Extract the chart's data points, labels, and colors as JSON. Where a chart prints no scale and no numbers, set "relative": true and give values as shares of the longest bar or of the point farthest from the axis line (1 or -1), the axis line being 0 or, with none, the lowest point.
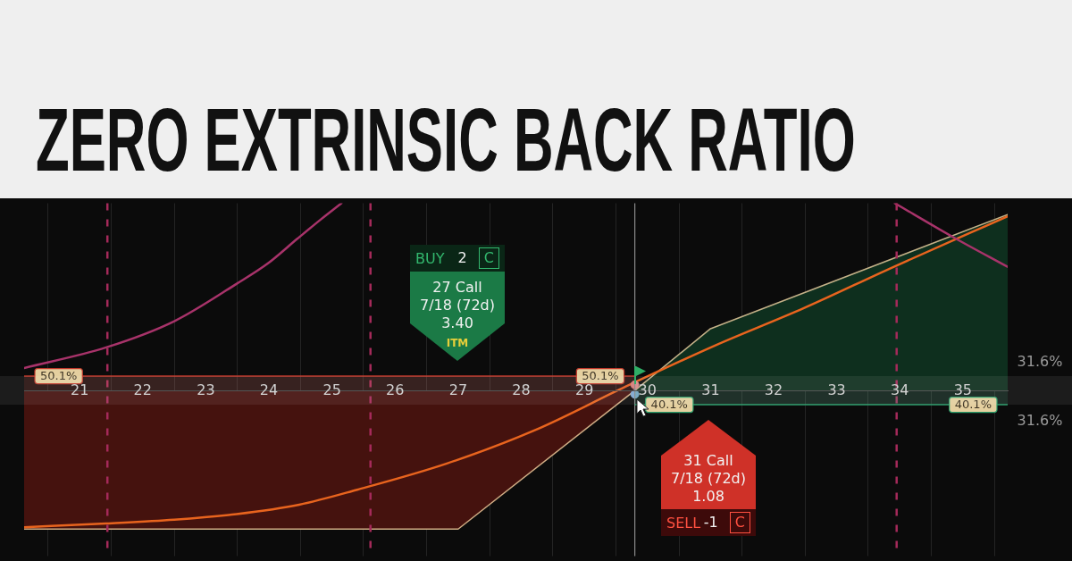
{
  "chart_data": {
    "type": "line",
    "title": "ZERO EXTRINSIC BACK RATIO",
    "relative": true,
    "xlim": [
      20.12,
      35.71
    ],
    "xticks": [
      {
        "value": 20.5,
        "label": null
      },
      21,
      {
        "value": 21.5,
        "label": null
      },
      22,
      {
        "value": 22.5,
        "label": null
      },
      23,
      {
        "value": 23.5,
        "label": null
      },
      24,
      {
        "value": 24.5,
        "label": null
      },
      25,
      {
        "value": 25.5,
        "label": null
      },
      26,
      {
        "value": 26.5,
        "label": null
      },
      27,
      {
        "value": 27.5,
        "label": null
      },
      28,
      {
        "value": 28.5,
        "label": null
      },
      29,
      {
        "value": 29.5,
        "label": null
      },
      30,
      {
        "value": 30.5,
        "label": null
      },
      31,
      {
        "value": 31.5,
        "label": null
      },
      32,
      {
        "value": 32.5,
        "label": null
      },
      33,
      {
        "value": 33.5,
        "label": null
      },
      34,
      {
        "value": 34.5,
        "label": null
      },
      35,
      {
        "value": 35.5,
        "label": null
      }
    ],
    "grid": "x",
    "series": [
      {
        "type": "area",
        "color": "#45120e",
        "x": [
          20.12,
          27,
          29.8
        ],
        "values": [
          -0.74,
          -0.74,
          0
        ]
      },
      {
        "type": "area",
        "color": "#0e2f1e",
        "x": [
          29.8,
          31,
          35.71
        ],
        "values": [
          0,
          0.33,
          0.94
        ]
      },
      {
        "color": "#e8641e",
        "x": [
          20.12,
          21.42,
          22.5,
          23.49,
          24.48,
          25.4,
          26.82,
          28.23,
          29.65,
          31.07,
          32.48,
          33.9,
          35.71
        ],
        "values": [
          -0.73,
          -0.71,
          -0.69,
          -0.66,
          -0.61,
          -0.53,
          -0.39,
          -0.21,
          0.02,
          0.24,
          0.44,
          0.66,
          0.93
        ]
      },
      {
        "color": "#a8336a",
        "x": [
          20.12,
          21.42,
          22.5,
          23.49,
          23.99,
          24.45,
          24.81,
          25.15,
          29.8,
          33.92,
          34.84,
          35.71
        ],
        "values": [
          0.12,
          0.23,
          0.37,
          0.57,
          0.68,
          0.81,
          0.91,
          1,
          null,
          1,
          0.82,
          0.66
        ]
      },
      {
        "type": "scatter",
        "marker": "circle",
        "colors": [
          "#d88a8a",
          "#7ea6d0"
        ],
        "x": [
          29.8,
          29.8
        ],
        "values": [
          0.03,
          -0.02
        ]
      }
    ],
    "ref_lines": [
      {
        "axis": "x",
        "value": 21.44,
        "color": "#a52a5a",
        "line_style": "dashed"
      },
      {
        "axis": "x",
        "value": 25.61,
        "color": "#a52a5a",
        "line_style": "dashed"
      },
      {
        "axis": "x",
        "value": 33.95,
        "color": "#a52a5a",
        "line_style": "dashed"
      },
      {
        "axis": "x",
        "value": 29.8,
        "color": "#8a8a8a",
        "line_style": "solid"
      }
    ],
    "bands": [
      {
        "axis": "x",
        "from": 20.12,
        "to": 29.8,
        "label": "50.1%",
        "color": "#c0392b"
      },
      {
        "axis": "x",
        "from": 29.8,
        "to": 35.71,
        "label": "40.1%",
        "color": "#2a9d6a"
      }
    ],
    "annotations": [
      "BUY 2 C\n27 Call\n7/18 (72d)\n3.40\nITM",
      "31 Call\n7/18 (72d)\n1.08\nSELL -1 C",
      "31.6%",
      "31.6%"
    ]
  }
}
